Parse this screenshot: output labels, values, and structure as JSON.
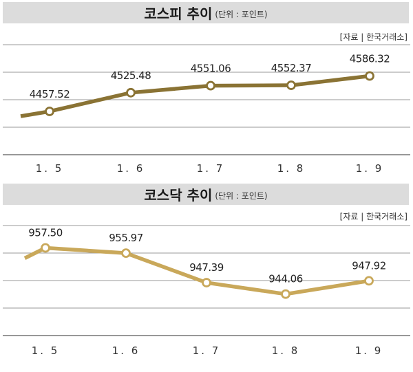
{
  "chart_data": [
    {
      "type": "line",
      "title": "코스피 추이",
      "unit_note": "(단위 : 포인트)",
      "source": "[자료 | 한국거래소]",
      "categories": [
        "1.5",
        "1.6",
        "1.7",
        "1.8",
        "1.9"
      ],
      "values": [
        4457.52,
        4525.48,
        4551.06,
        4552.37,
        4586.32
      ],
      "value_labels": [
        "4457.52",
        "4525.48",
        "4551.06",
        "4552.37",
        "4586.32"
      ],
      "line_start_value": 4440,
      "ylim": [
        4300,
        4700
      ],
      "grid": true,
      "color": "#8a7334"
    },
    {
      "type": "line",
      "title": "코스닥 추이",
      "unit_note": "(단위 : 포인트)",
      "source": "[자료 | 한국거래소]",
      "categories": [
        "1.5",
        "1.6",
        "1.7",
        "1.8",
        "1.9"
      ],
      "values": [
        957.5,
        955.97,
        947.39,
        944.06,
        947.92
      ],
      "value_labels": [
        "957.50",
        "955.97",
        "947.39",
        "944.06",
        "947.92"
      ],
      "line_start_value": 954.5,
      "ylim": [
        932,
        964
      ],
      "grid": true,
      "color": "#c9a85a"
    }
  ]
}
